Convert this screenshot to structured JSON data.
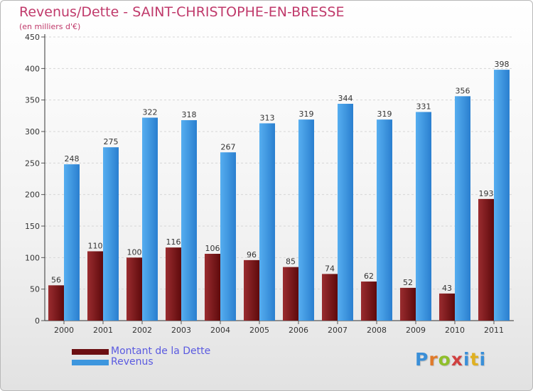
{
  "title": "Revenus/Dette - SAINT-CHRISTOPHE-EN-BRESSE",
  "subtitle": "(en milliers d'€)",
  "chart_data": {
    "type": "bar",
    "categories": [
      "2000",
      "2001",
      "2002",
      "2003",
      "2004",
      "2005",
      "2006",
      "2007",
      "2008",
      "2009",
      "2010",
      "2011"
    ],
    "series": [
      {
        "name": "Montant de la Dette",
        "color": "#7a1518",
        "values": [
          56,
          110,
          100,
          116,
          106,
          96,
          85,
          74,
          62,
          52,
          43,
          193
        ]
      },
      {
        "name": "Revenus",
        "color": "#3d96de",
        "values": [
          248,
          275,
          322,
          318,
          267,
          313,
          319,
          344,
          319,
          331,
          356,
          398
        ]
      }
    ],
    "yticks": [
      0,
      50,
      100,
      150,
      200,
      250,
      300,
      350,
      400,
      450
    ],
    "ylim": [
      0,
      450
    ],
    "grid": true
  },
  "legend": {
    "items": [
      {
        "label": "Montant de la Dette",
        "color": "#6b0f12"
      },
      {
        "label": "Revenus",
        "color": "#3d96de"
      }
    ]
  },
  "logo": {
    "letters": [
      "P",
      "r",
      "o",
      "x",
      "i",
      "t",
      "i"
    ],
    "colors": [
      "#3a8fd8",
      "#e07a2a",
      "#8fbf2a",
      "#d04040",
      "#3a8fd8",
      "#e0b020",
      "#3a8fd8"
    ]
  }
}
